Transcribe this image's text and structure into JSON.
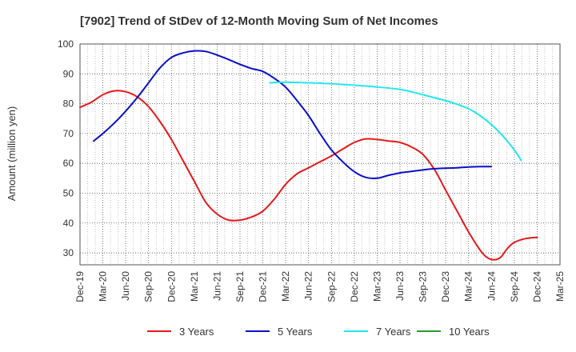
{
  "chart_data": {
    "type": "line",
    "title": "[7902]  Trend of StDev of 12-Month Moving Sum of Net Incomes",
    "ylabel": "Amount (million yen)",
    "xlabel": "",
    "ylim": [
      26,
      100
    ],
    "yticks": [
      30,
      40,
      50,
      60,
      70,
      80,
      90,
      100
    ],
    "x_categories": [
      "Dec-19",
      "Mar-20",
      "Jun-20",
      "Sep-20",
      "Dec-20",
      "Mar-21",
      "Jun-21",
      "Sep-21",
      "Dec-21",
      "Mar-22",
      "Jun-22",
      "Sep-22",
      "Dec-22",
      "Mar-23",
      "Jun-23",
      "Sep-23",
      "Dec-23",
      "Mar-24",
      "Jun-24",
      "Sep-24",
      "Dec-24",
      "Mar-25"
    ],
    "grid": true,
    "legend_position": "bottom",
    "series": [
      {
        "name": "3 Years",
        "color": "#e31a1c",
        "points": [
          [
            0,
            78.8
          ],
          [
            0.5,
            80.5
          ],
          [
            1,
            83
          ],
          [
            1.5,
            84.3
          ],
          [
            2,
            84
          ],
          [
            2.5,
            82.3
          ],
          [
            3,
            79
          ],
          [
            3.5,
            74
          ],
          [
            4,
            68
          ],
          [
            4.5,
            61
          ],
          [
            5,
            54
          ],
          [
            5.5,
            47
          ],
          [
            6,
            43
          ],
          [
            6.5,
            41
          ],
          [
            7,
            41
          ],
          [
            7.5,
            42
          ],
          [
            8,
            44
          ],
          [
            8.5,
            48
          ],
          [
            9,
            53
          ],
          [
            9.5,
            56.5
          ],
          [
            10,
            58.5
          ],
          [
            10.5,
            60.5
          ],
          [
            11,
            62.5
          ],
          [
            11.5,
            64.8
          ],
          [
            12,
            67
          ],
          [
            12.5,
            68.2
          ],
          [
            13,
            68
          ],
          [
            13.5,
            67.5
          ],
          [
            14,
            67
          ],
          [
            14.5,
            65.5
          ],
          [
            15,
            63
          ],
          [
            15.5,
            58
          ],
          [
            16,
            51
          ],
          [
            16.5,
            44
          ],
          [
            17,
            37
          ],
          [
            17.5,
            31
          ],
          [
            17.8,
            28.5
          ],
          [
            18.1,
            27.7
          ],
          [
            18.4,
            28.5
          ],
          [
            18.7,
            31.5
          ],
          [
            19,
            33.5
          ],
          [
            19.5,
            34.8
          ],
          [
            20,
            35.2
          ]
        ]
      },
      {
        "name": "5 Years",
        "color": "#0a10c8",
        "points": [
          [
            0.6,
            67.5
          ],
          [
            1,
            70
          ],
          [
            1.5,
            73.5
          ],
          [
            2,
            77.5
          ],
          [
            2.5,
            82
          ],
          [
            3,
            87
          ],
          [
            3.5,
            92
          ],
          [
            4,
            95.5
          ],
          [
            4.5,
            97
          ],
          [
            5,
            97.7
          ],
          [
            5.5,
            97.5
          ],
          [
            6,
            96.3
          ],
          [
            6.5,
            94.8
          ],
          [
            7,
            93.2
          ],
          [
            7.5,
            91.8
          ],
          [
            8,
            90.8
          ],
          [
            8.5,
            88.5
          ],
          [
            9,
            85.5
          ],
          [
            9.5,
            81
          ],
          [
            10,
            76
          ],
          [
            10.5,
            70
          ],
          [
            11,
            64.5
          ],
          [
            11.5,
            60.5
          ],
          [
            12,
            57.2
          ],
          [
            12.5,
            55.3
          ],
          [
            13,
            55
          ],
          [
            13.5,
            56
          ],
          [
            14,
            56.8
          ],
          [
            14.5,
            57.3
          ],
          [
            15,
            57.8
          ],
          [
            15.5,
            58.2
          ],
          [
            16,
            58.4
          ],
          [
            16.5,
            58.5
          ],
          [
            17,
            58.8
          ],
          [
            17.5,
            58.9
          ],
          [
            18,
            58.9
          ]
        ]
      },
      {
        "name": "7 Years",
        "color": "#22e6f0",
        "points": [
          [
            8.3,
            87
          ],
          [
            9,
            87.2
          ],
          [
            10,
            87
          ],
          [
            11,
            86.7
          ],
          [
            12,
            86.2
          ],
          [
            13,
            85.6
          ],
          [
            14,
            84.8
          ],
          [
            14.5,
            84
          ],
          [
            15,
            83
          ],
          [
            15.5,
            82
          ],
          [
            16,
            81
          ],
          [
            16.5,
            79.8
          ],
          [
            17,
            78.3
          ],
          [
            17.5,
            76
          ],
          [
            18,
            73
          ],
          [
            18.5,
            69.2
          ],
          [
            19,
            64.5
          ],
          [
            19.3,
            61
          ]
        ]
      },
      {
        "name": "10 Years",
        "color": "#2a9a2a",
        "points": []
      }
    ]
  }
}
